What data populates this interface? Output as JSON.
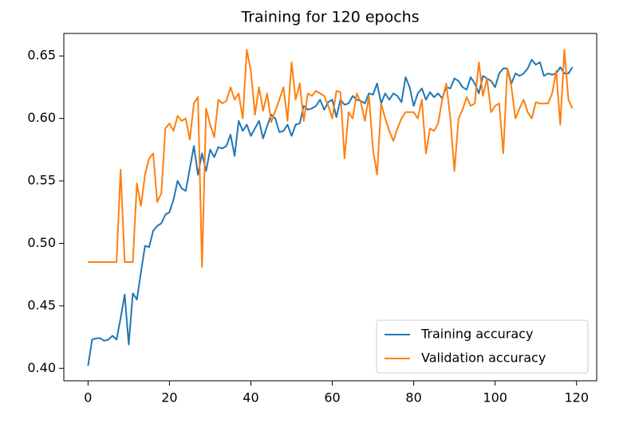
{
  "chart_data": {
    "type": "line",
    "title": "Training for 120 epochs",
    "x": [
      0,
      1,
      2,
      3,
      4,
      5,
      6,
      7,
      8,
      9,
      10,
      11,
      12,
      13,
      14,
      15,
      16,
      17,
      18,
      19,
      20,
      21,
      22,
      23,
      24,
      25,
      26,
      27,
      28,
      29,
      30,
      31,
      32,
      33,
      34,
      35,
      36,
      37,
      38,
      39,
      40,
      41,
      42,
      43,
      44,
      45,
      46,
      47,
      48,
      49,
      50,
      51,
      52,
      53,
      54,
      55,
      56,
      57,
      58,
      59,
      60,
      61,
      62,
      63,
      64,
      65,
      66,
      67,
      68,
      69,
      70,
      71,
      72,
      73,
      74,
      75,
      76,
      77,
      78,
      79,
      80,
      81,
      82,
      83,
      84,
      85,
      86,
      87,
      88,
      89,
      90,
      91,
      92,
      93,
      94,
      95,
      96,
      97,
      98,
      99,
      100,
      101,
      102,
      103,
      104,
      105,
      106,
      107,
      108,
      109,
      110,
      111,
      112,
      113,
      114,
      115,
      116,
      117,
      118,
      119
    ],
    "series": [
      {
        "name": "Training accuracy",
        "color": "#1f77b4",
        "values": [
          0.402,
          0.423,
          0.424,
          0.424,
          0.422,
          0.423,
          0.426,
          0.423,
          0.44,
          0.459,
          0.419,
          0.46,
          0.455,
          0.477,
          0.498,
          0.497,
          0.51,
          0.514,
          0.516,
          0.523,
          0.525,
          0.535,
          0.55,
          0.544,
          0.542,
          0.56,
          0.578,
          0.555,
          0.572,
          0.558,
          0.575,
          0.569,
          0.577,
          0.576,
          0.578,
          0.587,
          0.57,
          0.598,
          0.59,
          0.595,
          0.586,
          0.592,
          0.598,
          0.584,
          0.594,
          0.603,
          0.6,
          0.589,
          0.59,
          0.595,
          0.586,
          0.595,
          0.596,
          0.61,
          0.607,
          0.608,
          0.61,
          0.615,
          0.607,
          0.613,
          0.615,
          0.601,
          0.615,
          0.611,
          0.612,
          0.618,
          0.615,
          0.614,
          0.612,
          0.62,
          0.619,
          0.628,
          0.612,
          0.62,
          0.615,
          0.62,
          0.618,
          0.613,
          0.633,
          0.625,
          0.61,
          0.62,
          0.624,
          0.615,
          0.621,
          0.617,
          0.62,
          0.616,
          0.625,
          0.624,
          0.632,
          0.63,
          0.625,
          0.623,
          0.633,
          0.628,
          0.62,
          0.634,
          0.632,
          0.63,
          0.625,
          0.636,
          0.64,
          0.64,
          0.628,
          0.636,
          0.634,
          0.636,
          0.64,
          0.647,
          0.643,
          0.645,
          0.634,
          0.636,
          0.635,
          0.636,
          0.641,
          0.636,
          0.636,
          0.641
        ]
      },
      {
        "name": "Validation accuracy",
        "color": "#ff7f0e",
        "values": [
          0.485,
          0.485,
          0.485,
          0.485,
          0.485,
          0.485,
          0.485,
          0.485,
          0.559,
          0.485,
          0.485,
          0.485,
          0.548,
          0.53,
          0.555,
          0.568,
          0.572,
          0.533,
          0.54,
          0.592,
          0.596,
          0.59,
          0.602,
          0.598,
          0.6,
          0.583,
          0.612,
          0.617,
          0.481,
          0.608,
          0.595,
          0.585,
          0.615,
          0.612,
          0.614,
          0.625,
          0.615,
          0.62,
          0.6,
          0.655,
          0.638,
          0.603,
          0.625,
          0.606,
          0.62,
          0.597,
          0.606,
          0.615,
          0.625,
          0.598,
          0.645,
          0.615,
          0.628,
          0.598,
          0.62,
          0.618,
          0.622,
          0.62,
          0.618,
          0.61,
          0.6,
          0.622,
          0.621,
          0.568,
          0.605,
          0.6,
          0.62,
          0.613,
          0.598,
          0.618,
          0.575,
          0.555,
          0.612,
          0.6,
          0.59,
          0.582,
          0.592,
          0.6,
          0.605,
          0.605,
          0.605,
          0.6,
          0.615,
          0.572,
          0.592,
          0.59,
          0.596,
          0.615,
          0.628,
          0.6,
          0.558,
          0.6,
          0.607,
          0.617,
          0.61,
          0.612,
          0.645,
          0.618,
          0.632,
          0.605,
          0.61,
          0.612,
          0.572,
          0.64,
          0.625,
          0.6,
          0.608,
          0.615,
          0.605,
          0.6,
          0.613,
          0.612,
          0.612,
          0.612,
          0.62,
          0.638,
          0.595,
          0.655,
          0.615,
          0.608
        ]
      }
    ],
    "xlim": [
      -5.95,
      124.95
    ],
    "xticks": [
      0,
      20,
      40,
      60,
      80,
      100,
      120
    ],
    "ylim": [
      0.39,
      0.668
    ],
    "yticks": [
      {
        "value": 0.4,
        "label": "0.40"
      },
      0.45,
      {
        "value": 0.5,
        "label": "0.50"
      },
      0.55,
      {
        "value": 0.6,
        "label": "0.60"
      },
      0.65
    ],
    "legend": "lower right"
  }
}
